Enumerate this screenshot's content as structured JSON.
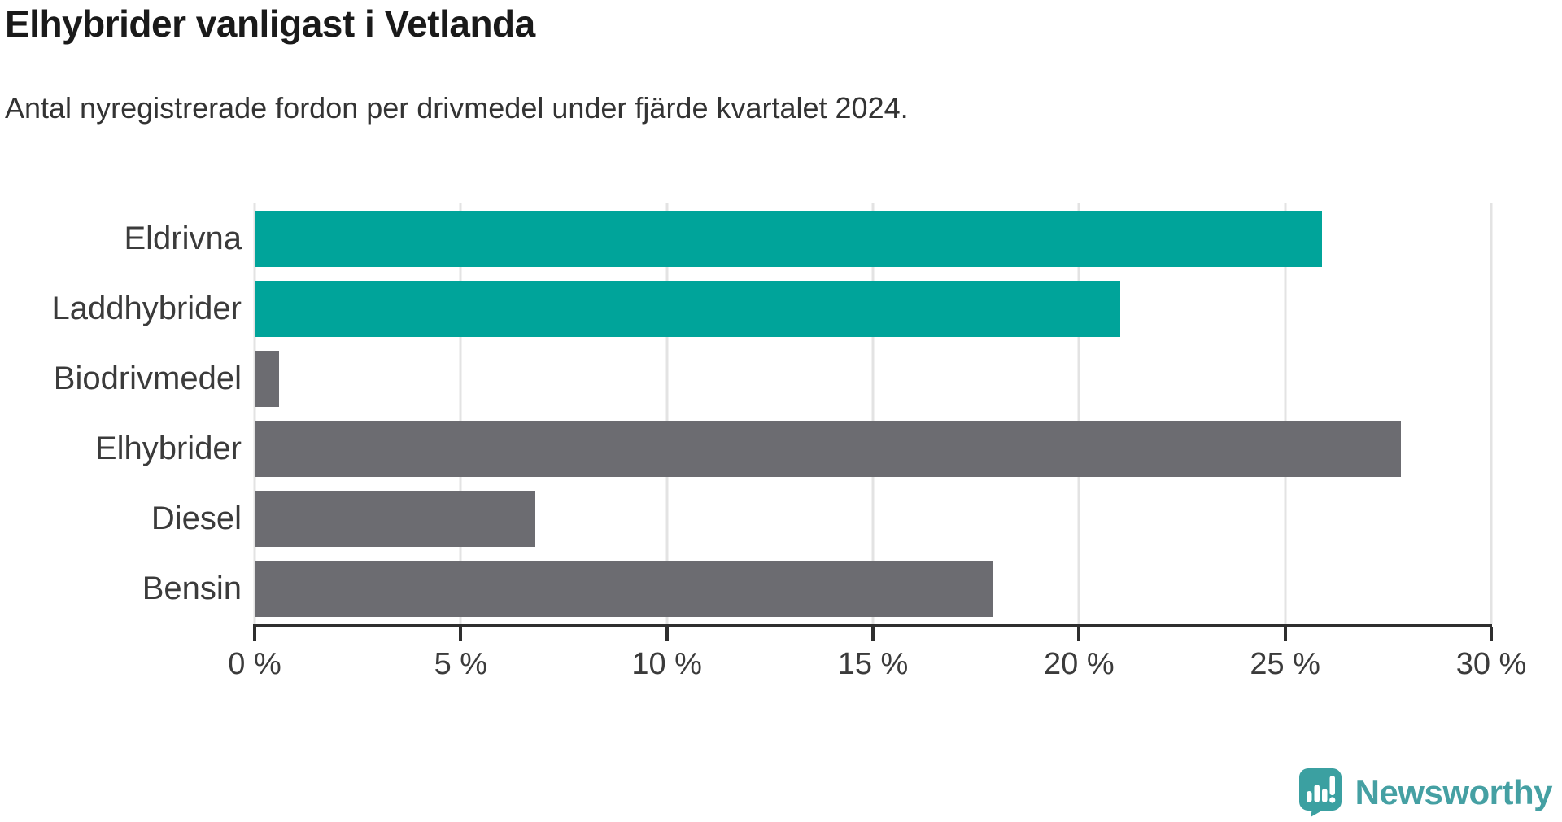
{
  "header": {
    "title": "Elhybrider vanligast i Vetlanda",
    "subtitle": "Antal nyregistrerade fordon per drivmedel under fjärde kvartalet 2024."
  },
  "chart_data": {
    "type": "bar",
    "orientation": "horizontal",
    "title": "Elhybrider vanligast i Vetlanda",
    "subtitle": "Antal nyregistrerade fordon per drivmedel under fjärde kvartalet 2024.",
    "categories": [
      "Eldrivna",
      "Laddhybrider",
      "Biodrivmedel",
      "Elhybrider",
      "Diesel",
      "Bensin"
    ],
    "values": [
      25.9,
      21.0,
      0.6,
      27.8,
      6.8,
      17.9
    ],
    "unit": "%",
    "bar_colors": [
      "#00A49A",
      "#00A49A",
      "#6C6C71",
      "#6C6C71",
      "#6C6C71",
      "#6C6C71"
    ],
    "highlight_color": "#00A49A",
    "default_color": "#6C6C71",
    "xlim": [
      0,
      30
    ],
    "xticks": [
      0,
      5,
      10,
      15,
      20,
      25,
      30
    ],
    "tick_labels": [
      "0 %",
      "5 %",
      "10 %",
      "15 %",
      "20 %",
      "25 %",
      "30 %"
    ],
    "xlabel": "",
    "ylabel": "",
    "grid": "vertical",
    "gridline_color": "#E3E3E3",
    "axis_color": "#2E2E2E",
    "legend": "none"
  },
  "footer": {
    "brand": "Newsworthy",
    "brand_color": "#45A0A3"
  }
}
